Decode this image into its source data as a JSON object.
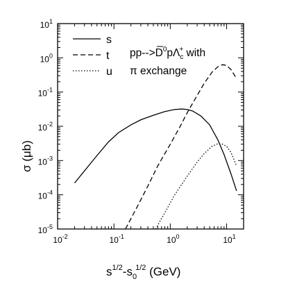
{
  "chart_data": {
    "type": "line",
    "x_scale": "log",
    "y_scale": "log",
    "xlim": [
      0.01,
      20
    ],
    "ylim": [
      1e-05,
      10
    ],
    "x_ticks": [
      {
        "value": 0.01,
        "base": "10",
        "exp": "-2"
      },
      {
        "value": 0.1,
        "base": "10",
        "exp": "-1"
      },
      {
        "value": 1,
        "base": "10",
        "exp": "0"
      },
      {
        "value": 10,
        "base": "10",
        "exp": "1"
      }
    ],
    "y_ticks": [
      {
        "value": 1e-05,
        "base": "10",
        "exp": "-5"
      },
      {
        "value": 0.0001,
        "base": "10",
        "exp": "-4"
      },
      {
        "value": 0.001,
        "base": "10",
        "exp": "-3"
      },
      {
        "value": 0.01,
        "base": "10",
        "exp": "-2"
      },
      {
        "value": 0.1,
        "base": "10",
        "exp": "-1"
      },
      {
        "value": 1,
        "base": "10",
        "exp": "0"
      },
      {
        "value": 10,
        "base": "10",
        "exp": "1"
      }
    ],
    "xlabel": {
      "p1": "s",
      "p1_sup": "1/2",
      "p2": "-s",
      "p2_sub": "0",
      "p2_sup": "1/2",
      "unit": " (GeV)"
    },
    "ylabel": {
      "symbol": "σ",
      "unit": " (μb)"
    },
    "annotation": {
      "line1_a": "pp-->",
      "line1_D": "D",
      "line1_D_sup": "0",
      "line1_b": "pΛ",
      "line1_c_sub": "c",
      "line1_c_sup": "+",
      "line1_c": " with",
      "line2": "π exchange"
    },
    "legend_position": "top-left",
    "series": [
      {
        "name": "s",
        "style": "solid",
        "points": [
          [
            0.02,
            0.00022
          ],
          [
            0.03,
            0.0005
          ],
          [
            0.05,
            0.0014
          ],
          [
            0.08,
            0.0035
          ],
          [
            0.12,
            0.0065
          ],
          [
            0.2,
            0.011
          ],
          [
            0.3,
            0.0155
          ],
          [
            0.5,
            0.021
          ],
          [
            0.8,
            0.027
          ],
          [
            1.2,
            0.031
          ],
          [
            1.6,
            0.032
          ],
          [
            2.0,
            0.031
          ],
          [
            2.5,
            0.028
          ],
          [
            3.5,
            0.02
          ],
          [
            5.0,
            0.011
          ],
          [
            7.0,
            0.004
          ],
          [
            9.0,
            0.0015
          ],
          [
            12.0,
            0.0004
          ],
          [
            15.0,
            0.00013
          ]
        ]
      },
      {
        "name": "t",
        "style": "dashed",
        "points": [
          [
            0.16,
            1e-05
          ],
          [
            0.25,
            4e-05
          ],
          [
            0.4,
            0.00018
          ],
          [
            0.6,
            0.0007
          ],
          [
            1.0,
            0.003
          ],
          [
            1.5,
            0.01
          ],
          [
            2.0,
            0.025
          ],
          [
            3.0,
            0.08
          ],
          [
            4.0,
            0.18
          ],
          [
            5.5,
            0.38
          ],
          [
            7.0,
            0.55
          ],
          [
            8.5,
            0.63
          ],
          [
            10.0,
            0.6
          ],
          [
            12.0,
            0.45
          ],
          [
            15.0,
            0.25
          ]
        ]
      },
      {
        "name": "u",
        "style": "dotted",
        "points": [
          [
            0.55,
            1e-05
          ],
          [
            0.8,
            3e-05
          ],
          [
            1.2,
            0.0001
          ],
          [
            2.0,
            0.00035
          ],
          [
            3.0,
            0.0009
          ],
          [
            4.0,
            0.0016
          ],
          [
            5.5,
            0.0026
          ],
          [
            7.0,
            0.0031
          ],
          [
            8.5,
            0.003
          ],
          [
            10.0,
            0.0026
          ],
          [
            12.0,
            0.0017
          ],
          [
            15.0,
            0.0007
          ]
        ]
      }
    ]
  }
}
